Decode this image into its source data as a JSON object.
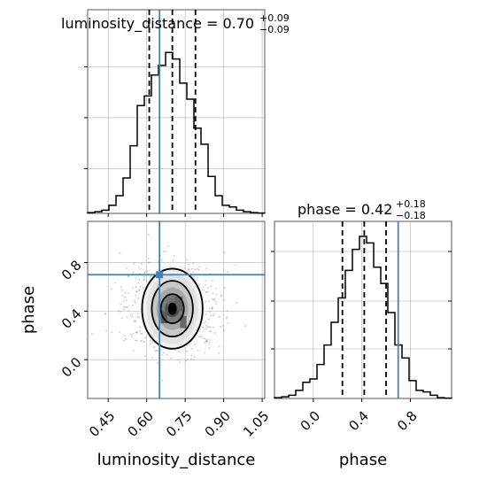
{
  "chart_data": {
    "type": "corner",
    "parameters": [
      "luminosity_distance",
      "phase"
    ],
    "axis_labels": {
      "x_left": "luminosity_distance",
      "x_right": "phase",
      "y_left": "phase"
    },
    "titles": [
      {
        "param": "luminosity_distance",
        "text": "luminosity_distance = 0.70",
        "plus": "+0.09",
        "minus": "−0.09"
      },
      {
        "param": "phase",
        "text": "phase = 0.42",
        "plus": "+0.18",
        "minus": "−0.18"
      }
    ],
    "injection": {
      "luminosity_distance": 0.65,
      "phase": 0.7
    },
    "quantiles": {
      "luminosity_distance": [
        0.61,
        0.7,
        0.79
      ],
      "phase": [
        0.24,
        0.42,
        0.6
      ]
    },
    "xlim": {
      "luminosity_distance": [
        0.37,
        1.06
      ],
      "phase": [
        -0.32,
        1.14
      ]
    },
    "ylim": {
      "phase": [
        -0.32,
        1.14
      ]
    },
    "ticks": {
      "luminosity_distance": [
        "0.45",
        "0.60",
        "0.75",
        "0.90",
        "1.05"
      ],
      "phase": [
        "0.0",
        "0.4",
        "0.8"
      ]
    },
    "hist_luminosity_distance": {
      "bins": [
        0.37,
        0.3976,
        0.4252,
        0.4528,
        0.4804,
        0.508,
        0.5356,
        0.5632,
        0.5908,
        0.6184,
        0.646,
        0.6736,
        0.7012,
        0.7288,
        0.7564,
        0.784,
        0.8116,
        0.8392,
        0.8668,
        0.8944,
        0.922,
        0.9496,
        0.9772,
        1.0048,
        1.0324,
        1.06
      ],
      "density": [
        0.005,
        0.01,
        0.02,
        0.05,
        0.11,
        0.22,
        0.42,
        0.67,
        0.73,
        0.86,
        0.92,
        1.0,
        0.96,
        0.81,
        0.71,
        0.53,
        0.43,
        0.23,
        0.11,
        0.05,
        0.04,
        0.02,
        0.01,
        0.005,
        0.002
      ]
    },
    "hist_phase": {
      "bins": [
        -0.32,
        -0.2616,
        -0.2032,
        -0.1448,
        -0.0864,
        -0.028,
        0.0304,
        0.0888,
        0.1472,
        0.2056,
        0.264,
        0.3224,
        0.3808,
        0.4392,
        0.4976,
        0.556,
        0.6144,
        0.6728,
        0.7312,
        0.7896,
        0.848,
        0.9064,
        0.9648,
        1.0232,
        1.0816,
        1.14
      ],
      "density": [
        0.005,
        0.01,
        0.02,
        0.05,
        0.1,
        0.12,
        0.21,
        0.33,
        0.47,
        0.62,
        0.79,
        0.92,
        1.0,
        0.96,
        0.81,
        0.71,
        0.53,
        0.33,
        0.25,
        0.11,
        0.05,
        0.04,
        0.02,
        0.005,
        0.002
      ]
    },
    "contour_levels": [
      {
        "level": 1,
        "rx": 0.045,
        "ry": 0.12
      },
      {
        "level": 2,
        "rx": 0.08,
        "ry": 0.23
      },
      {
        "level": 3,
        "rx": 0.118,
        "ry": 0.33
      }
    ],
    "center": {
      "luminosity_distance": 0.7,
      "phase": 0.42
    },
    "colors": {
      "truth": "#4682b4",
      "hist": "#000000",
      "grid": "#b0b0b0",
      "scatter": "#888888"
    }
  }
}
